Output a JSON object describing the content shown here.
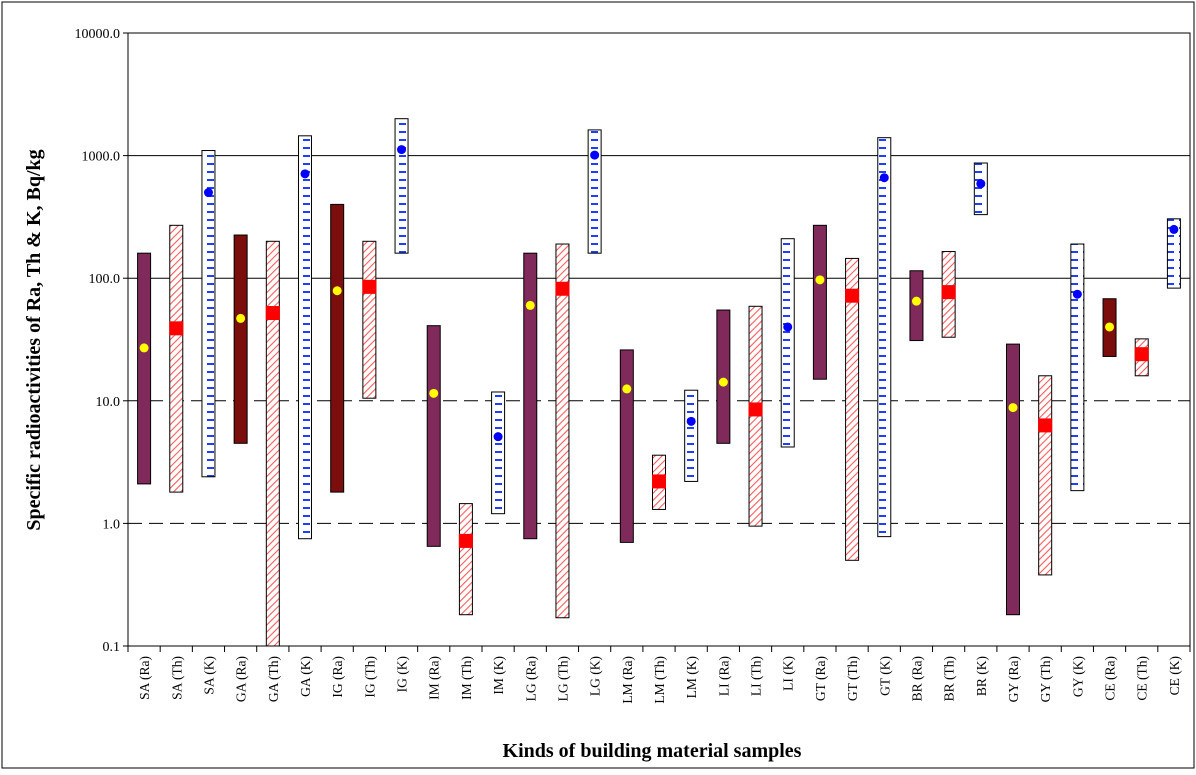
{
  "chart_data": {
    "type": "range-bar",
    "ylabel": "Specific radioactivities of Ra, Th & K, Bq/kg",
    "xlabel": "Kinds of building material samples",
    "y_scale": "log",
    "ylim": [
      0.1,
      10000
    ],
    "y_ticks": [
      "0.1",
      "1.0",
      "10.0",
      "100.0",
      "1000.0",
      "10000.0"
    ],
    "y_tick_values": [
      0.1,
      1,
      10,
      100,
      1000,
      10000
    ],
    "gridlines": {
      "solid": [
        100,
        1000
      ],
      "dashed": [
        1,
        10
      ]
    },
    "series_styles": {
      "Ra": {
        "fill": "#7f2a5a",
        "marker": "circle",
        "marker_color": "#ffff00"
      },
      "Ra_dark": {
        "fill": "#7b0d0d",
        "marker": "circle",
        "marker_color": "#ffff00"
      },
      "Th": {
        "fill": "hatch-red",
        "marker": "square",
        "marker_color": "#ff0000"
      },
      "K": {
        "fill": "dash-blue",
        "marker": "circle",
        "marker_color": "#0000ff"
      }
    },
    "bars": [
      {
        "label": "SA (Ra)",
        "kind": "Ra",
        "min": 2.1,
        "max": 160,
        "mean": 27
      },
      {
        "label": "SA (Th)",
        "kind": "Th",
        "min": 1.8,
        "max": 270,
        "mean": 39
      },
      {
        "label": "SA (K)",
        "kind": "K",
        "min": 2.4,
        "max": 1100,
        "mean": 500
      },
      {
        "label": "GA (Ra)",
        "kind": "Ra_dark",
        "min": 4.5,
        "max": 225,
        "mean": 47
      },
      {
        "label": "GA (Th)",
        "kind": "Th",
        "min": 0.1,
        "max": 200,
        "mean": 52
      },
      {
        "label": "GA (K)",
        "kind": "K",
        "min": 0.75,
        "max": 1450,
        "mean": 710
      },
      {
        "label": "IG (Ra)",
        "kind": "Ra_dark",
        "min": 1.8,
        "max": 400,
        "mean": 79
      },
      {
        "label": "IG (Th)",
        "kind": "Th",
        "min": 10.5,
        "max": 200,
        "mean": 85
      },
      {
        "label": "IG (K)",
        "kind": "K",
        "min": 160,
        "max": 2000,
        "mean": 1120
      },
      {
        "label": "IM (Ra)",
        "kind": "Ra",
        "min": 0.65,
        "max": 41,
        "mean": 11.5
      },
      {
        "label": "IM (Th)",
        "kind": "Th",
        "min": 0.18,
        "max": 1.45,
        "mean": 0.72
      },
      {
        "label": "IM (K)",
        "kind": "K",
        "min": 1.2,
        "max": 11.8,
        "mean": 5.1
      },
      {
        "label": "LG (Ra)",
        "kind": "Ra",
        "min": 0.75,
        "max": 160,
        "mean": 60
      },
      {
        "label": "LG (Th)",
        "kind": "Th",
        "min": 0.17,
        "max": 190,
        "mean": 82
      },
      {
        "label": "LG (K)",
        "kind": "K",
        "min": 160,
        "max": 1620,
        "mean": 1010
      },
      {
        "label": "LM (Ra)",
        "kind": "Ra",
        "min": 0.7,
        "max": 26,
        "mean": 12.5
      },
      {
        "label": "LM (Th)",
        "kind": "Th",
        "min": 1.3,
        "max": 3.6,
        "mean": 2.2
      },
      {
        "label": "LM (K)",
        "kind": "K",
        "min": 2.2,
        "max": 12.2,
        "mean": 6.8
      },
      {
        "label": "LI (Ra)",
        "kind": "Ra",
        "min": 4.5,
        "max": 55,
        "mean": 14.2
      },
      {
        "label": "LI (Th)",
        "kind": "Th",
        "min": 0.95,
        "max": 59,
        "mean": 8.5
      },
      {
        "label": "LI (K)",
        "kind": "K",
        "min": 4.2,
        "max": 210,
        "mean": 40
      },
      {
        "label": "GT (Ra)",
        "kind": "Ra",
        "min": 15,
        "max": 270,
        "mean": 97
      },
      {
        "label": "GT (Th)",
        "kind": "Th",
        "min": 0.5,
        "max": 145,
        "mean": 72
      },
      {
        "label": "GT (K)",
        "kind": "K",
        "min": 0.78,
        "max": 1400,
        "mean": 660
      },
      {
        "label": "BR (Ra)",
        "kind": "Ra",
        "min": 31,
        "max": 115,
        "mean": 65
      },
      {
        "label": "BR (Th)",
        "kind": "Th",
        "min": 33,
        "max": 165,
        "mean": 77
      },
      {
        "label": "BR (K)",
        "kind": "K",
        "min": 330,
        "max": 870,
        "mean": 590
      },
      {
        "label": "GY (Ra)",
        "kind": "Ra",
        "min": 0.18,
        "max": 29,
        "mean": 8.8
      },
      {
        "label": "GY (Th)",
        "kind": "Th",
        "min": 0.38,
        "max": 16,
        "mean": 6.3
      },
      {
        "label": "GY (K)",
        "kind": "K",
        "min": 1.85,
        "max": 190,
        "mean": 74
      },
      {
        "label": "CE (Ra)",
        "kind": "Ra_dark",
        "min": 23,
        "max": 68,
        "mean": 40
      },
      {
        "label": "CE (Th)",
        "kind": "Th",
        "min": 16,
        "max": 32,
        "mean": 24
      },
      {
        "label": "CE (K)",
        "kind": "K",
        "min": 83,
        "max": 305,
        "mean": 250
      }
    ]
  }
}
